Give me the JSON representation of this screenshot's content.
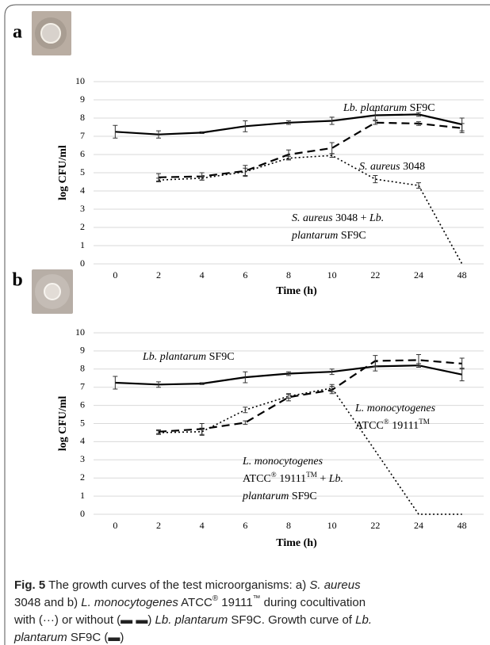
{
  "chart_data": [
    {
      "type": "line",
      "label": "a",
      "ylabel": "log CFU/ml",
      "xlabel": "Time (h)",
      "categories": [
        "0",
        "2",
        "4",
        "6",
        "8",
        "10",
        "22",
        "24",
        "48"
      ],
      "ylim": [
        0,
        10
      ],
      "yticks": [
        0,
        1,
        2,
        3,
        4,
        5,
        6,
        7,
        8,
        9,
        10
      ],
      "grid": true,
      "series": [
        {
          "color": "#000000",
          "dash": "solid",
          "values": [
            7.25,
            7.1,
            7.2,
            7.55,
            7.75,
            7.85,
            8.15,
            8.2,
            7.65
          ],
          "errors": [
            0.35,
            0.2,
            0.05,
            0.3,
            0.1,
            0.2,
            0.25,
            0.1,
            0.35
          ]
        },
        {
          "color": "#000000",
          "dash": "dashed",
          "values": [
            null,
            4.75,
            4.8,
            5.1,
            6.0,
            6.35,
            7.75,
            7.7,
            7.45
          ],
          "errors": [
            null,
            0.2,
            0.2,
            0.3,
            0.25,
            0.3,
            0.1,
            0.1,
            0.25
          ]
        },
        {
          "color": "#000000",
          "dash": "dotted",
          "values": [
            null,
            4.6,
            4.7,
            5.05,
            5.8,
            5.95,
            4.65,
            4.3,
            0
          ],
          "errors": [
            null,
            0.1,
            0.1,
            0.2,
            0.1,
            0.1,
            0.2,
            0.15,
            null
          ]
        }
      ],
      "annotations": [
        [
          [
            {
              "i": "Lb. plantarum"
            },
            {
              "t": " SF9C"
            }
          ]
        ],
        [
          [
            {
              "i": "S. aureus"
            },
            {
              "t": " 3048"
            }
          ]
        ],
        [
          [
            {
              "i": "S. aureus"
            },
            {
              "t": " 3048 + "
            },
            {
              "i": "Lb."
            }
          ],
          [
            {
              "i": "plantarum"
            },
            {
              "t": " SF9C"
            }
          ]
        ]
      ]
    },
    {
      "type": "line",
      "label": "b",
      "ylabel": "log CFU/ml",
      "xlabel": "Time (h)",
      "categories": [
        "0",
        "2",
        "4",
        "6",
        "8",
        "10",
        "22",
        "24",
        "48"
      ],
      "ylim": [
        0,
        10
      ],
      "yticks": [
        0,
        1,
        2,
        3,
        4,
        5,
        6,
        7,
        8,
        9,
        10
      ],
      "grid": true,
      "series": [
        {
          "color": "#000000",
          "dash": "solid",
          "values": [
            7.25,
            7.15,
            7.2,
            7.55,
            7.75,
            7.85,
            8.15,
            8.2,
            7.7
          ],
          "errors": [
            0.35,
            0.15,
            0.05,
            0.3,
            0.1,
            0.15,
            0.25,
            0.1,
            0.35
          ]
        },
        {
          "color": "#000000",
          "dash": "dashed",
          "values": [
            null,
            4.55,
            4.7,
            5.05,
            6.45,
            6.85,
            8.45,
            8.5,
            8.3
          ],
          "errors": [
            null,
            0.1,
            0.3,
            0.1,
            0.2,
            0.2,
            0.3,
            0.3,
            0.3
          ]
        },
        {
          "color": "#000000",
          "dash": "dotted",
          "values": [
            null,
            4.5,
            4.55,
            5.75,
            6.5,
            6.95,
            3.5,
            0,
            0
          ],
          "errors": [
            null,
            0.1,
            0.2,
            0.15,
            0.1,
            0.2,
            null,
            null,
            null
          ]
        }
      ],
      "annotations": [
        [
          [
            {
              "i": "Lb. plantarum"
            },
            {
              "t": " SF9C"
            }
          ]
        ],
        [
          [
            {
              "i": "L. monocytogenes"
            }
          ],
          [
            {
              "t": "ATCC"
            },
            {
              "sup": "®"
            },
            {
              "t": " 19111"
            },
            {
              "sup": "TM"
            }
          ]
        ],
        [
          [
            {
              "i": "L. monocytogenes"
            }
          ],
          [
            {
              "t": "ATCC"
            },
            {
              "sup": "®"
            },
            {
              "t": " 19111"
            },
            {
              "sup": "TM"
            },
            {
              "t": " + "
            },
            {
              "i": "Lb."
            }
          ],
          [
            {
              "i": "plantarum"
            },
            {
              "t": " SF9C"
            }
          ]
        ]
      ]
    }
  ],
  "caption": [
    [
      {
        "b": "Fig. 5"
      },
      {
        "t": "  The growth curves of the test microorganisms: a) "
      },
      {
        "i": "S. aureus"
      }
    ],
    [
      {
        "t": "3048 and b) "
      },
      {
        "i": "L. monocytogenes"
      },
      {
        "t": " ATCC"
      },
      {
        "sup": "®"
      },
      {
        "t": " 19111"
      },
      {
        "sup": "™"
      },
      {
        "t": " during cocultivation"
      }
    ],
    [
      {
        "t": "with (···) or without (▬ ▬) "
      },
      {
        "i": "Lb. plantarum"
      },
      {
        "t": " SF9C. Growth curve of "
      },
      {
        "i": "Lb."
      }
    ],
    [
      {
        "i": "plantarum"
      },
      {
        "t": " SF9C (▬)"
      }
    ]
  ]
}
